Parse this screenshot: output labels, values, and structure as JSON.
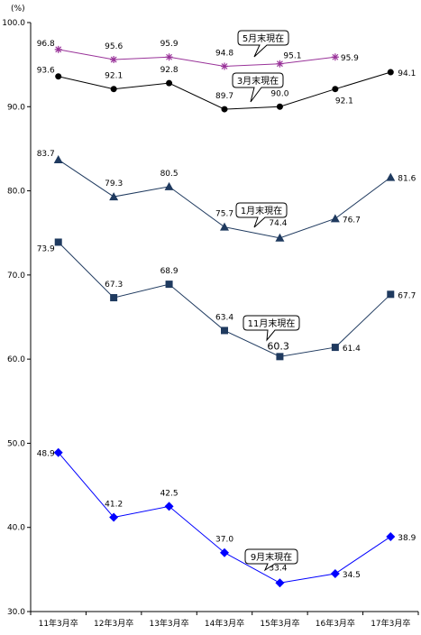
{
  "chart_data": {
    "type": "line",
    "unit_label": "(%)",
    "categories": [
      "11年3月卒",
      "12年3月卒",
      "13年3月卒",
      "14年3月卒",
      "15年3月卒",
      "16年3月卒",
      "17年3月卒"
    ],
    "ylim": [
      30.0,
      100.0
    ],
    "yticks": [
      "30.0",
      "40.0",
      "50.0",
      "60.0",
      "70.0",
      "80.0",
      "90.0",
      "100.0"
    ],
    "grid": false,
    "series": [
      {
        "name": "5月末現在",
        "values": [
          96.8,
          95.6,
          95.9,
          94.8,
          95.1,
          95.9,
          null
        ],
        "labels": [
          "96.8",
          "95.6",
          "95.9",
          "94.8",
          "95.1",
          "95.9",
          ""
        ],
        "color": "#993399",
        "marker": "asterisk"
      },
      {
        "name": "3月末現在",
        "values": [
          93.6,
          92.1,
          92.8,
          89.7,
          90.0,
          92.1,
          94.1
        ],
        "labels": [
          "93.6",
          "92.1",
          "92.8",
          "89.7",
          "90.0",
          "92.1",
          "94.1"
        ],
        "color": "#000000",
        "marker": "circle"
      },
      {
        "name": "1月末現在",
        "values": [
          83.7,
          79.3,
          80.5,
          75.7,
          74.4,
          76.7,
          81.6
        ],
        "labels": [
          "83.7",
          "79.3",
          "80.5",
          "75.7",
          "74.4",
          "76.7",
          "81.6"
        ],
        "color": "#1f3a5f",
        "marker": "triangle"
      },
      {
        "name": "11月末現在",
        "values": [
          73.9,
          67.3,
          68.9,
          63.4,
          60.3,
          61.4,
          67.7
        ],
        "labels": [
          "73.9",
          "67.3",
          "68.9",
          "63.4",
          "60.3",
          "61.4",
          "67.7"
        ],
        "color": "#1f3a5f",
        "marker": "square"
      },
      {
        "name": "9月末現在",
        "values": [
          48.9,
          41.2,
          42.5,
          37.0,
          33.4,
          34.5,
          38.9
        ],
        "labels": [
          "48.9",
          "41.2",
          "42.5",
          "37.0",
          "33.4",
          "34.5",
          "38.9"
        ],
        "color": "#0000ff",
        "marker": "diamond"
      }
    ]
  }
}
